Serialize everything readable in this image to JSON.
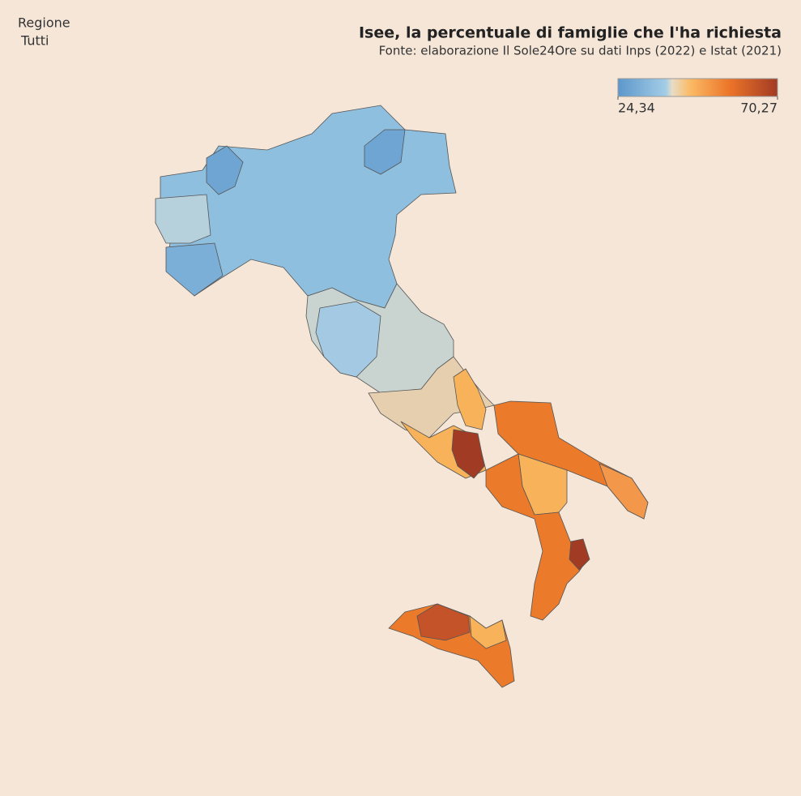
{
  "filter": {
    "label": "Regione",
    "value": "Tutti"
  },
  "header": {
    "title": "Isee, la percentuale di famiglie che l'ha richiesta",
    "subtitle": "Fonte: elaborazione Il Sole24Ore su dati Inps (2022) e Istat (2021)"
  },
  "legend": {
    "min": {
      "value": 24.34,
      "label": "24,34"
    },
    "max": {
      "value": 70.27,
      "label": "70,27"
    }
  }
}
